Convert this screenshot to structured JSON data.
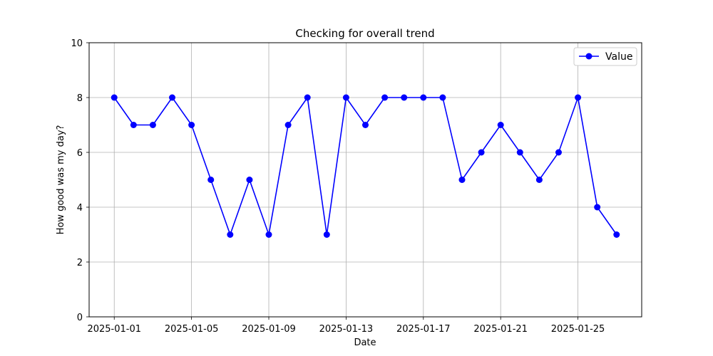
{
  "chart_data": {
    "type": "line",
    "title": "Checking for overall trend",
    "xlabel": "Date",
    "ylabel": "How good was my day?",
    "x": [
      "2025-01-01",
      "2025-01-02",
      "2025-01-03",
      "2025-01-04",
      "2025-01-05",
      "2025-01-06",
      "2025-01-07",
      "2025-01-08",
      "2025-01-09",
      "2025-01-10",
      "2025-01-11",
      "2025-01-12",
      "2025-01-13",
      "2025-01-14",
      "2025-01-15",
      "2025-01-16",
      "2025-01-17",
      "2025-01-18",
      "2025-01-19",
      "2025-01-20",
      "2025-01-21",
      "2025-01-22",
      "2025-01-23",
      "2025-01-24",
      "2025-01-25",
      "2025-01-26",
      "2025-01-27"
    ],
    "series": [
      {
        "name": "Value",
        "color": "#0000ff",
        "marker": "circle",
        "values": [
          8,
          7,
          7,
          8,
          7,
          5,
          3,
          5,
          3,
          7,
          8,
          3,
          8,
          7,
          8,
          8,
          8,
          8,
          5,
          6,
          7,
          6,
          5,
          6,
          8,
          4,
          3
        ]
      }
    ],
    "xticks": [
      "2025-01-01",
      "2025-01-05",
      "2025-01-09",
      "2025-01-13",
      "2025-01-17",
      "2025-01-21",
      "2025-01-25"
    ],
    "yticks": [
      0,
      2,
      4,
      6,
      8,
      10
    ],
    "xlim": [
      "2024-12-30T16:48",
      "2025-01-28T07:12"
    ],
    "ylim": [
      0,
      10
    ],
    "grid": true,
    "legend_position": "top-right"
  }
}
